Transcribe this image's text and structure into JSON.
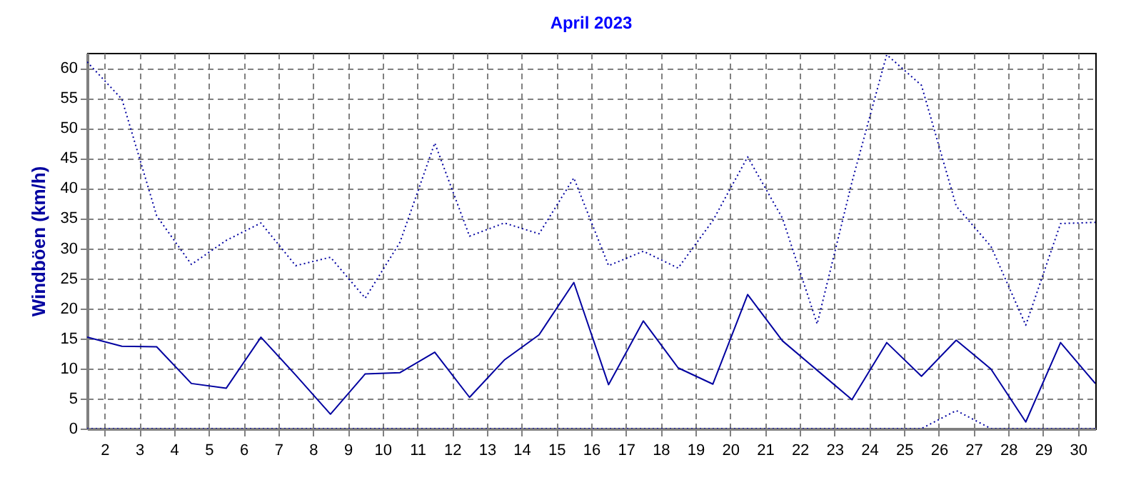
{
  "chart_data": {
    "type": "line",
    "title": "April 2023",
    "ylabel": "Windböen  (km/h)",
    "x": [
      1.5,
      2.5,
      3.5,
      4.5,
      5.5,
      6.5,
      7.5,
      8.5,
      9.5,
      10.5,
      11.5,
      12.5,
      13.5,
      14.5,
      15.5,
      16.5,
      17.5,
      18.5,
      19.5,
      20.5,
      21.5,
      22.5,
      23.5,
      24.5,
      25.5,
      26.5,
      27.5,
      28.5,
      29.5,
      30.5
    ],
    "series": [
      {
        "color": "#0000a0",
        "line_style": "dotted",
        "values": [
          61.0,
          54.8,
          35.4,
          27.3,
          31.3,
          34.2,
          27.1,
          28.5,
          21.7,
          31.0,
          47.5,
          32.0,
          34.2,
          32.4,
          41.7,
          27.1,
          29.5,
          26.7,
          34.6,
          45.2,
          35.0,
          17.4,
          41.0,
          62.2,
          57.1,
          37.0,
          30.3,
          17.2,
          34.1,
          34.3
        ]
      },
      {
        "color": "#0000a0",
        "line_style": "solid",
        "values": [
          15.2,
          13.7,
          13.6,
          7.5,
          6.7,
          15.2,
          8.9,
          2.4,
          9.1,
          9.3,
          12.7,
          5.2,
          11.4,
          15.6,
          24.3,
          7.3,
          17.9,
          10.1,
          7.4,
          22.3,
          14.6,
          9.7,
          4.8,
          14.3,
          8.7,
          14.7,
          9.9,
          1.1,
          14.3,
          7.5
        ]
      },
      {
        "color": "#0000a0",
        "line_style": "dotted",
        "values": [
          0,
          0,
          0,
          0,
          0,
          0,
          0,
          0,
          0,
          0,
          0,
          0,
          0,
          0,
          0,
          0,
          0,
          0,
          0,
          0,
          0,
          0,
          0,
          0,
          0,
          3.0,
          0,
          0,
          0,
          0
        ]
      }
    ],
    "xlim": [
      1.5,
      30.5
    ],
    "xticks": [
      2,
      3,
      4,
      5,
      6,
      7,
      8,
      9,
      10,
      11,
      12,
      13,
      14,
      15,
      16,
      17,
      18,
      19,
      20,
      21,
      22,
      23,
      24,
      25,
      26,
      27,
      28,
      29,
      30
    ],
    "ylim": [
      0,
      62.5
    ],
    "yticks": [
      0,
      5,
      10,
      15,
      20,
      25,
      30,
      35,
      40,
      45,
      50,
      55,
      60
    ],
    "grid": true,
    "marker": "none"
  }
}
